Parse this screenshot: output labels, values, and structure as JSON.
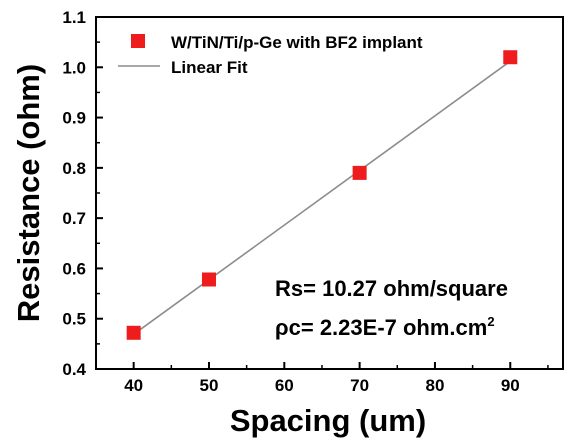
{
  "chart_data": {
    "type": "scatter",
    "title": "",
    "xlabel": "Spacing (um)",
    "ylabel": "Resistance (ohm)",
    "xlim": [
      35,
      97
    ],
    "ylim": [
      0.4,
      1.1
    ],
    "xticks": [
      "40",
      "50",
      "60",
      "70",
      "80",
      "90"
    ],
    "yticks": [
      "0.4",
      "0.5",
      "0.6",
      "0.7",
      "0.8",
      "0.9",
      "1.0",
      "1.1"
    ],
    "x": [
      40,
      50,
      70,
      90
    ],
    "y": [
      0.472,
      0.578,
      0.79,
      1.02
    ],
    "fit": {
      "name": "Linear Fit",
      "x": [
        40,
        90
      ],
      "y": [
        0.469,
        1.012
      ]
    },
    "series": [
      {
        "name": "W/TiN/Ti/p-Ge with BF2 implant",
        "marker": "square",
        "color": "#ee1c1c"
      }
    ],
    "legend": "top-left",
    "grid": false,
    "annotations": {
      "rs": "Rs= 10.27 ohm/square",
      "rho_prefix": "c= 2.23E-7 ohm.cm",
      "rho_symbol": "ρ",
      "rho_exp": "2"
    }
  },
  "colors": {
    "marker": "#ee1c1c",
    "fit_line": "#8c8c8c",
    "axis": "#000000"
  }
}
